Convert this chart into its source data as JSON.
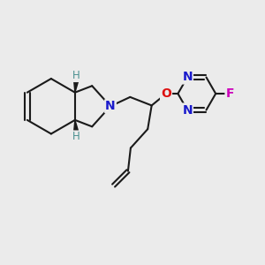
{
  "background_color": "#ebebeb",
  "bond_color": "#1a1a1a",
  "bond_width": 1.5,
  "atoms": {
    "N": {
      "color": "#1a1acc",
      "fontsize": 10,
      "fontweight": "bold"
    },
    "O": {
      "color": "#dd1111",
      "fontsize": 10,
      "fontweight": "bold"
    },
    "F": {
      "color": "#cc00bb",
      "fontsize": 10,
      "fontweight": "bold"
    },
    "H": {
      "color": "#4a9090",
      "fontsize": 8.5,
      "fontweight": "normal"
    }
  },
  "fig_width": 3.0,
  "fig_height": 3.0,
  "dpi": 100
}
